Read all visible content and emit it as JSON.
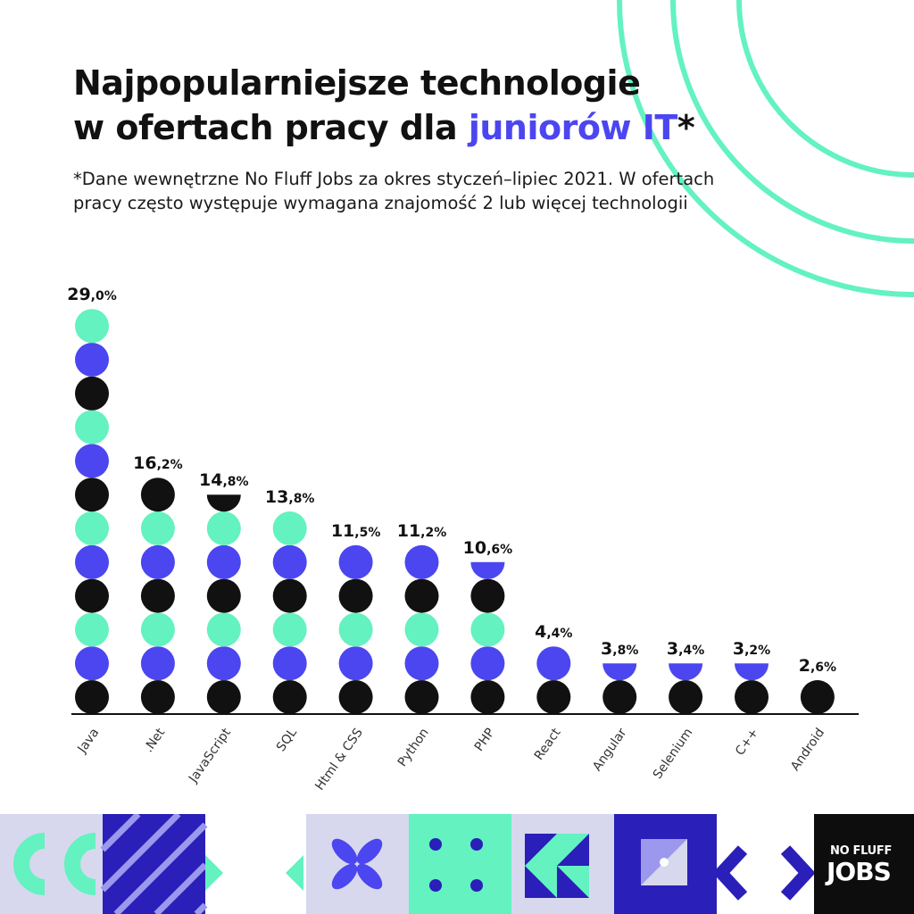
{
  "header": {
    "title_line1": "Najpopularniejsze technologie",
    "title_line2_prefix": "w ofertach pracy dla ",
    "title_line2_accent": "juniorów IT",
    "title_line2_suffix": "*",
    "subtitle_line1": "*Dane wewnętrzne No Fluff Jobs za okres styczeń–lipiec 2021. W ofertach",
    "subtitle_line2": "pracy często występuje wymagana znajomość 2 lub więcej technologii"
  },
  "colors": {
    "black": "#111111",
    "mint": "#63f2c0",
    "blue": "#4b46f0",
    "lavender": "#d7d8ee",
    "accent": "#4b46f0"
  },
  "chart_data": {
    "type": "bar",
    "style": "stacked circles",
    "categories": [
      "Java",
      ".Net",
      "JavaScript",
      "SQL",
      "Html & CSS",
      "Python",
      "PHP",
      "React",
      "Angular",
      "Selenium",
      "C++",
      "Android"
    ],
    "values": [
      29.0,
      16.2,
      14.8,
      13.8,
      11.5,
      11.2,
      10.6,
      4.4,
      3.8,
      3.4,
      3.2,
      2.6
    ],
    "value_labels": [
      {
        "int": "29",
        "dec": ",0%"
      },
      {
        "int": "16",
        "dec": ",2%"
      },
      {
        "int": "14",
        "dec": ",8%"
      },
      {
        "int": "13",
        "dec": ",8%"
      },
      {
        "int": "11",
        "dec": ",5%"
      },
      {
        "int": "11",
        "dec": ",2%"
      },
      {
        "int": "10",
        "dec": ",6%"
      },
      {
        "int": "4",
        "dec": ",4%"
      },
      {
        "int": "3",
        "dec": ",8%"
      },
      {
        "int": "3",
        "dec": ",4%"
      },
      {
        "int": "3",
        "dec": ",2%"
      },
      {
        "int": "2",
        "dec": ",6%"
      }
    ],
    "color_cycle_from_bottom": [
      "black",
      "blue",
      "mint"
    ],
    "top_half_circle": [
      false,
      false,
      true,
      false,
      false,
      false,
      true,
      false,
      true,
      true,
      true,
      false
    ]
  },
  "footer": {
    "logo_top": "NO FLUFF",
    "logo_bottom": "JOBS"
  }
}
